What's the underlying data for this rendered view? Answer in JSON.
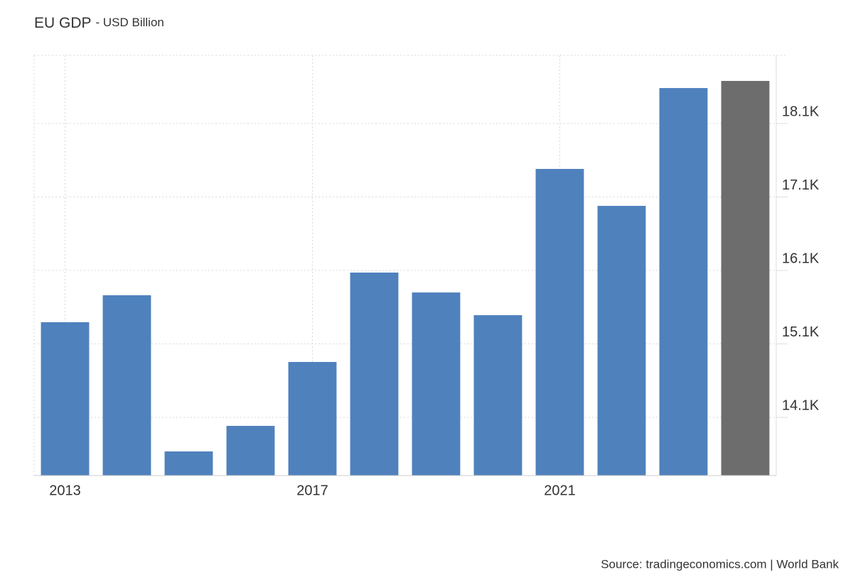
{
  "chart_data": {
    "type": "bar",
    "title": "EU GDP",
    "subtitle": "- USD Billion",
    "source": "Source: tradingeconomics.com | World Bank",
    "categories": [
      "2013",
      null,
      null,
      null,
      "2017",
      null,
      null,
      null,
      "2021",
      null,
      null,
      null
    ],
    "values": [
      15395,
      15762,
      13636,
      13984,
      14854,
      16071,
      15800,
      15491,
      17482,
      16979,
      18583,
      18680
    ],
    "colors": [
      "#4f81bd",
      "#4f81bd",
      "#4f81bd",
      "#4f81bd",
      "#4f81bd",
      "#4f81bd",
      "#4f81bd",
      "#4f81bd",
      "#4f81bd",
      "#4f81bd",
      "#4f81bd",
      "#6d6d6d"
    ],
    "ylim": [
      13308,
      19028
    ],
    "yticks": [
      {
        "value": 14100,
        "label": "14.1K"
      },
      {
        "value": 15100,
        "label": "15.1K"
      },
      {
        "value": 16100,
        "label": "16.1K"
      },
      {
        "value": 17100,
        "label": "17.1K"
      },
      {
        "value": 18100,
        "label": "18.1K"
      }
    ],
    "grid": true
  }
}
